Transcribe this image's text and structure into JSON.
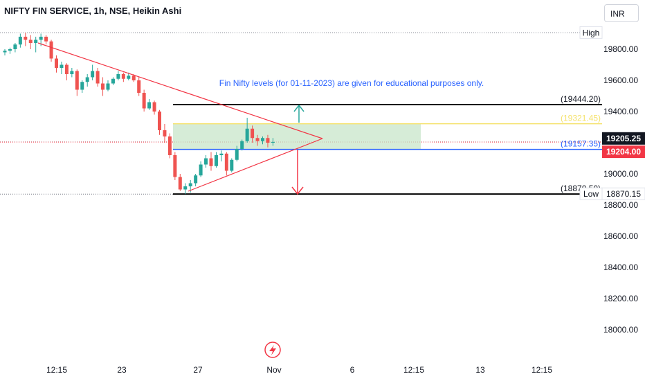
{
  "header": {
    "title": "NIFTY FIN SERVICE, 1h, NSE, Heikin Ashi",
    "currency": "INR"
  },
  "annotation": "Fin Nifty levels (for 01-11-2023) are given for educational purposes only.",
  "colors": {
    "up": "#26a69a",
    "down": "#ef5350",
    "resistance": "#000000",
    "yellow": "#f5e26b",
    "blue": "#2962ff",
    "zone": "#c8e6c9",
    "triangle": "#f23645",
    "note": "#2962ff"
  },
  "chart_data": {
    "type": "candlestick",
    "y_axis": {
      "ticks": [
        "19800.00",
        "19600.00",
        "19400.00",
        "19000.00",
        "18800.00",
        "18600.00",
        "18400.00",
        "18200.00",
        "18000.00"
      ],
      "tick_values": [
        19800,
        19600,
        19400,
        19000,
        18800,
        18600,
        18400,
        18200,
        18000
      ],
      "range": [
        17940,
        20000
      ]
    },
    "x_axis": {
      "labels": [
        "12:15",
        "23",
        "27",
        "Nov",
        "6",
        "12:15",
        "13",
        "12:15"
      ]
    },
    "levels": [
      {
        "label": "(19444.20)",
        "value": 19444.2,
        "color": "#000000"
      },
      {
        "label": "(19321.45)",
        "value": 19321.45,
        "color": "#f5e26b"
      },
      {
        "label": "(19157.35)",
        "value": 19157.35,
        "color": "#2962ff"
      },
      {
        "label": "(18870.50)",
        "value": 18870.5,
        "color": "#000000"
      }
    ],
    "markers": [
      {
        "label": "High",
        "value": 19905
      },
      {
        "label": "Low",
        "value": 18870.15
      }
    ],
    "price_tags": [
      {
        "label": "19205.25",
        "value": 19205.25,
        "color": "#000000"
      },
      {
        "label": "19204.00",
        "value": 19204.0,
        "color": "#f23645"
      }
    ],
    "low_tag": {
      "label": "18870.15",
      "value": 18870.15
    },
    "candles": [
      [
        19780,
        19800,
        19760,
        19790
      ],
      [
        19790,
        19810,
        19770,
        19800
      ],
      [
        19800,
        19840,
        19780,
        19830
      ],
      [
        19830,
        19900,
        19810,
        19880
      ],
      [
        19880,
        19905,
        19820,
        19860
      ],
      [
        19860,
        19890,
        19800,
        19840
      ],
      [
        19840,
        19880,
        19780,
        19860
      ],
      [
        19860,
        19900,
        19820,
        19880
      ],
      [
        19880,
        19890,
        19830,
        19850
      ],
      [
        19850,
        19860,
        19720,
        19740
      ],
      [
        19740,
        19760,
        19650,
        19680
      ],
      [
        19680,
        19720,
        19640,
        19700
      ],
      [
        19700,
        19710,
        19600,
        19640
      ],
      [
        19640,
        19680,
        19620,
        19660
      ],
      [
        19660,
        19670,
        19500,
        19540
      ],
      [
        19540,
        19600,
        19520,
        19590
      ],
      [
        19590,
        19640,
        19560,
        19620
      ],
      [
        19620,
        19700,
        19600,
        19660
      ],
      [
        19660,
        19680,
        19560,
        19580
      ],
      [
        19580,
        19620,
        19500,
        19540
      ],
      [
        19540,
        19600,
        19530,
        19580
      ],
      [
        19580,
        19620,
        19570,
        19610
      ],
      [
        19610,
        19660,
        19600,
        19640
      ],
      [
        19640,
        19650,
        19590,
        19610
      ],
      [
        19610,
        19650,
        19600,
        19630
      ],
      [
        19630,
        19640,
        19590,
        19600
      ],
      [
        19600,
        19620,
        19500,
        19520
      ],
      [
        19520,
        19540,
        19400,
        19420
      ],
      [
        19420,
        19480,
        19410,
        19460
      ],
      [
        19460,
        19470,
        19380,
        19400
      ],
      [
        19400,
        19410,
        19250,
        19280
      ],
      [
        19280,
        19320,
        19200,
        19240
      ],
      [
        19240,
        19260,
        19100,
        19120
      ],
      [
        19120,
        19140,
        18960,
        18980
      ],
      [
        18980,
        19000,
        18890,
        18900
      ],
      [
        18900,
        18940,
        18870,
        18920
      ],
      [
        18920,
        18960,
        18880,
        18940
      ],
      [
        18940,
        19000,
        18920,
        18990
      ],
      [
        18990,
        19080,
        18980,
        19060
      ],
      [
        19060,
        19120,
        19040,
        19100
      ],
      [
        19100,
        19140,
        19020,
        19050
      ],
      [
        19050,
        19140,
        19040,
        19120
      ],
      [
        19120,
        19150,
        19080,
        19130
      ],
      [
        19130,
        19140,
        18990,
        19020
      ],
      [
        19020,
        19100,
        19010,
        19090
      ],
      [
        19090,
        19180,
        19080,
        19160
      ],
      [
        19160,
        19220,
        19150,
        19210
      ],
      [
        19210,
        19360,
        19200,
        19290
      ],
      [
        19290,
        19310,
        19200,
        19230
      ],
      [
        19230,
        19250,
        19180,
        19210
      ],
      [
        19210,
        19240,
        19190,
        19230
      ],
      [
        19230,
        19250,
        19170,
        19200
      ],
      [
        19200,
        19230,
        19180,
        19205
      ]
    ]
  }
}
